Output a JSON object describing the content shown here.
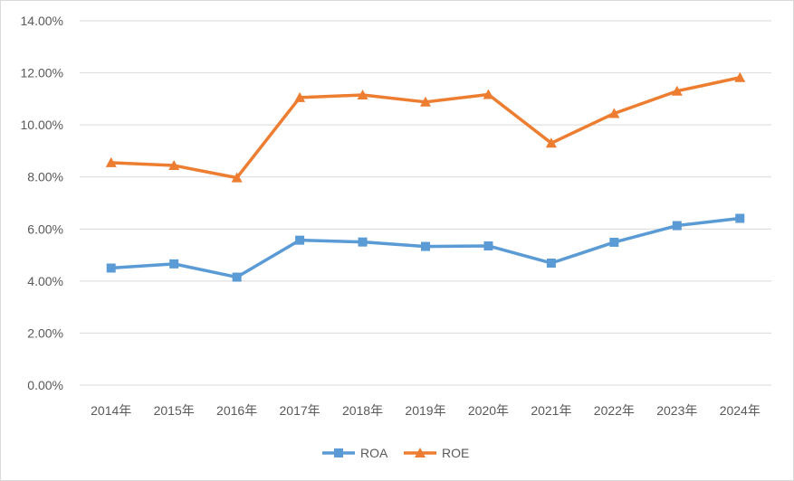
{
  "chart_data": {
    "type": "line",
    "title": "",
    "xlabel": "",
    "ylabel": "",
    "categories": [
      "2014年",
      "2015年",
      "2016年",
      "2017年",
      "2018年",
      "2019年",
      "2020年",
      "2021年",
      "2022年",
      "2023年",
      "2024年"
    ],
    "series": [
      {
        "name": "ROA",
        "color": "#5B9BD5",
        "marker": "square",
        "values": [
          4.5,
          4.66,
          4.15,
          5.57,
          5.5,
          5.33,
          5.35,
          4.69,
          5.49,
          6.13,
          6.41
        ]
      },
      {
        "name": "ROE",
        "color": "#ED7D31",
        "marker": "triangle",
        "values": [
          8.55,
          8.44,
          7.97,
          11.05,
          11.15,
          10.88,
          11.17,
          9.3,
          10.44,
          11.3,
          11.82
        ]
      }
    ],
    "y_ticks": [
      "0.00%",
      "2.00%",
      "4.00%",
      "6.00%",
      "8.00%",
      "10.00%",
      "12.00%",
      "14.00%"
    ],
    "ylim": [
      0,
      14
    ],
    "y_unit": "%",
    "grid": true,
    "legend": "bottom-center"
  }
}
